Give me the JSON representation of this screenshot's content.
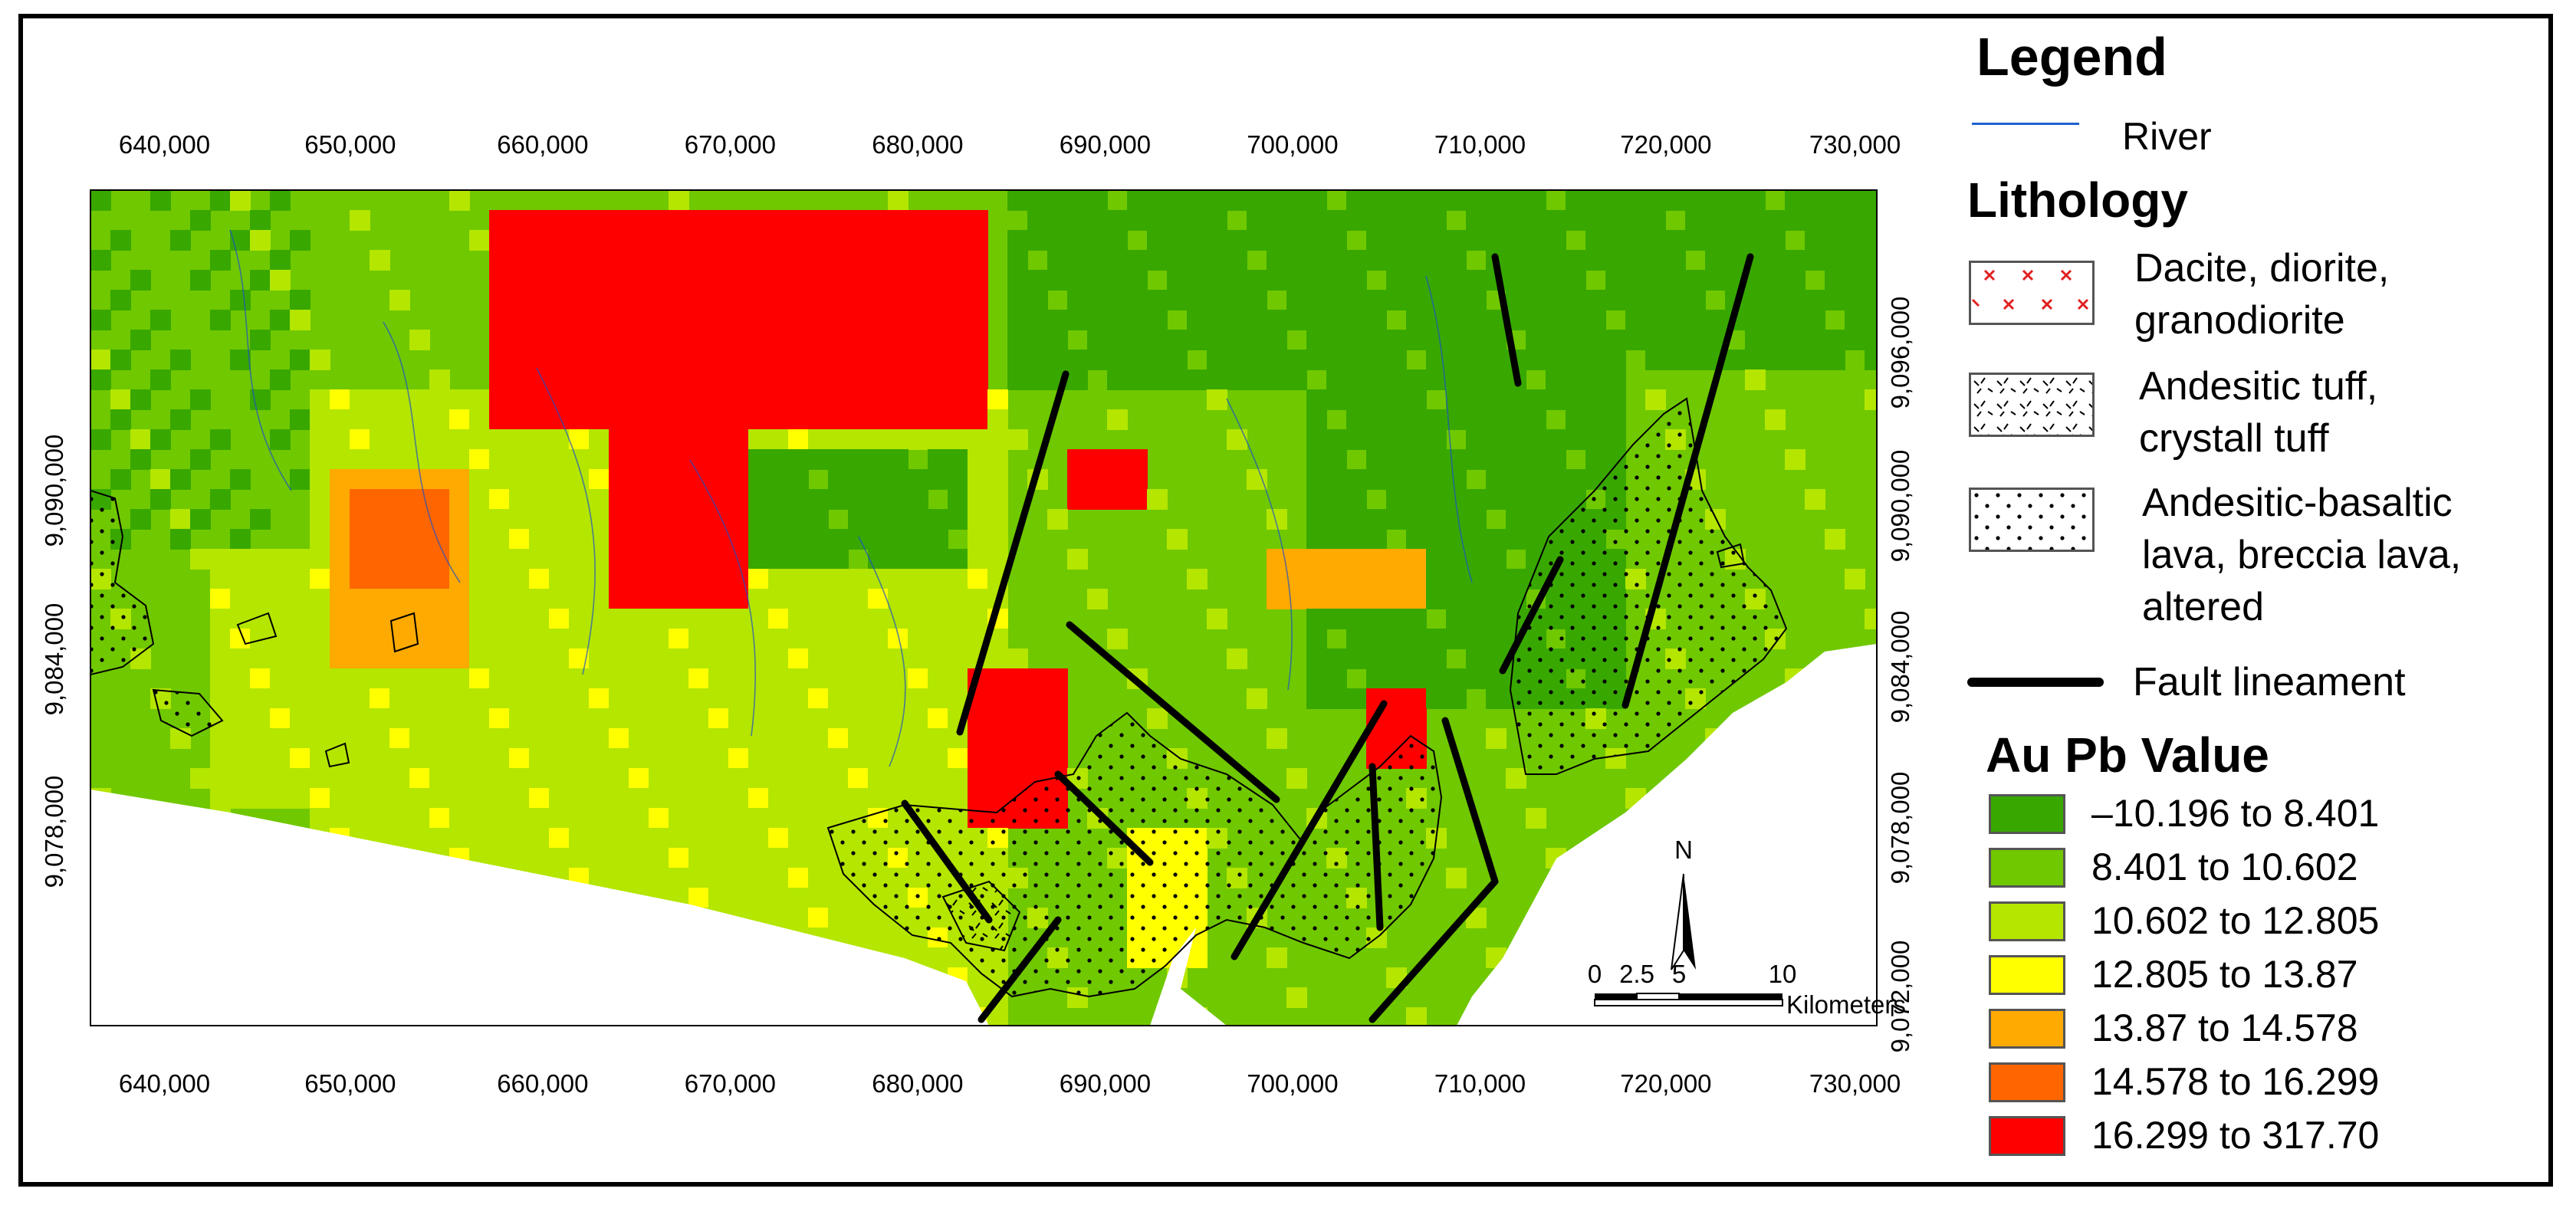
{
  "map": {
    "x_ticks_top": [
      "640,000",
      "650,000",
      "660,000",
      "670,000",
      "680,000",
      "690,000",
      "700,000",
      "710,000",
      "720,000",
      "730,000"
    ],
    "x_ticks_bottom": [
      "640,000",
      "650,000",
      "660,000",
      "670,000",
      "680,000",
      "690,000",
      "700,000",
      "710,000",
      "720,000",
      "730,000"
    ],
    "y_ticks_left": [
      "9,090,000",
      "9,084,000",
      "9,078,000"
    ],
    "y_ticks_right": [
      "9,096,000",
      "9,090,000",
      "9,084,000",
      "9,078,000",
      "9,072,000"
    ],
    "scale_bar": {
      "labels": [
        "0",
        "2.5",
        "5",
        "10"
      ],
      "unit": "Kilometers"
    },
    "north_arrow_label": "N"
  },
  "legend": {
    "title": "Legend",
    "river_label": "River",
    "lithology_title": "Lithology",
    "lithology": [
      {
        "lines": [
          "Dacite, diorite,",
          "granodiorite"
        ],
        "pattern": "x-red"
      },
      {
        "lines": [
          "Andesitic tuff,",
          "crystall tuff"
        ],
        "pattern": "ticks"
      },
      {
        "lines": [
          "Andesitic-basaltic",
          "lava, breccia lava,",
          "altered"
        ],
        "pattern": "dots"
      }
    ],
    "fault_label": "Fault lineament",
    "value_title": "Au Pb Value",
    "classes": [
      {
        "label": "–10.196 to 8.401",
        "color": "#38a800"
      },
      {
        "label": "8.401 to 10.602",
        "color": "#70c800"
      },
      {
        "label": "10.602 to 12.805",
        "color": "#b4e600"
      },
      {
        "label": "12.805 to 13.87",
        "color": "#ffff00"
      },
      {
        "label": "13.87 to 14.578",
        "color": "#ffaa00"
      },
      {
        "label": "14.578 to 16.299",
        "color": "#ff6600"
      },
      {
        "label": "16.299 to 317.70",
        "color": "#ff0000"
      }
    ]
  }
}
